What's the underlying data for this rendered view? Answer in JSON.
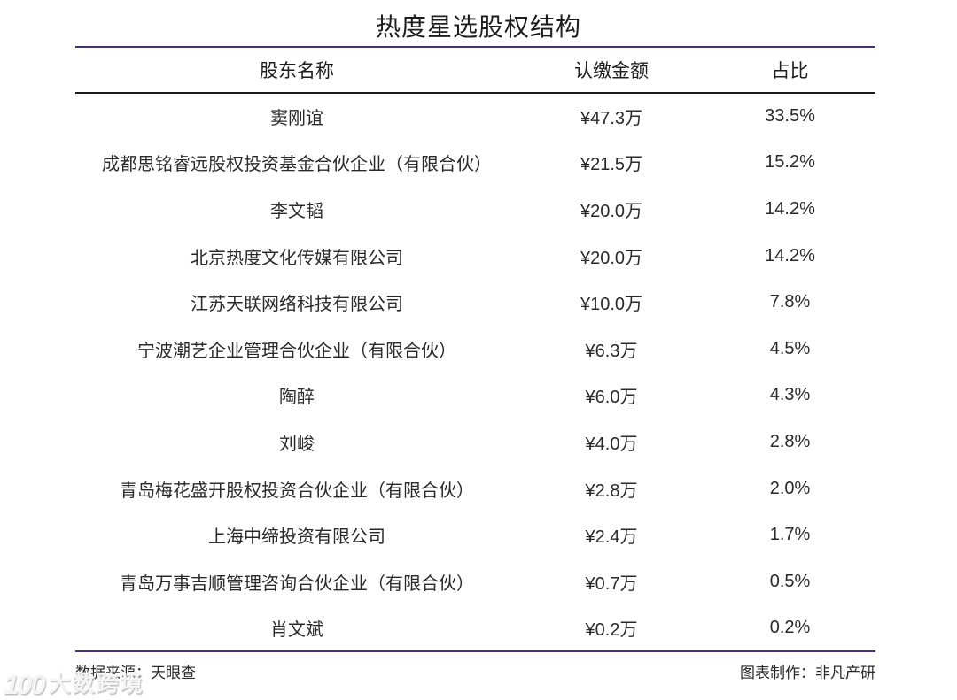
{
  "title": "热度星选股权结构",
  "table": {
    "headers": [
      "股东名称",
      "认缴金额",
      "占比"
    ],
    "rows": [
      {
        "name": "窦刚谊",
        "amount": "¥47.3万",
        "pct": "33.5%"
      },
      {
        "name": "成都思铭睿远股权投资基金合伙企业（有限合伙）",
        "amount": "¥21.5万",
        "pct": "15.2%"
      },
      {
        "name": "李文韬",
        "amount": "¥20.0万",
        "pct": "14.2%"
      },
      {
        "name": "北京热度文化传媒有限公司",
        "amount": "¥20.0万",
        "pct": "14.2%"
      },
      {
        "name": "江苏天联网络科技有限公司",
        "amount": "¥10.0万",
        "pct": "7.8%"
      },
      {
        "name": "宁波潮艺企业管理合伙企业（有限合伙）",
        "amount": "¥6.3万",
        "pct": "4.5%"
      },
      {
        "name": "陶醉",
        "amount": "¥6.0万",
        "pct": "4.3%"
      },
      {
        "name": "刘峻",
        "amount": "¥4.0万",
        "pct": "2.8%"
      },
      {
        "name": "青岛梅花盛开股权投资合伙企业（有限合伙）",
        "amount": "¥2.8万",
        "pct": "2.0%"
      },
      {
        "name": "上海中缔投资有限公司",
        "amount": "¥2.4万",
        "pct": "1.7%"
      },
      {
        "name": "青岛万事吉顺管理咨询合伙企业（有限合伙）",
        "amount": "¥0.7万",
        "pct": "0.5%"
      },
      {
        "name": "肖文斌",
        "amount": "¥0.2万",
        "pct": "0.2%"
      }
    ]
  },
  "footer": {
    "source": "数据来源：天眼查",
    "credit": "图表制作：非凡产研"
  },
  "watermark": {
    "logo": "100",
    "text": "大数跨境"
  },
  "colors": {
    "accent_rule": "#44317a",
    "header_rule": "#1d1d1d",
    "text": "#2a2a2a",
    "background": "#ffffff"
  },
  "chart_data": {
    "type": "table",
    "title": "热度星选股权结构",
    "columns": [
      "股东名称",
      "认缴金额",
      "占比"
    ],
    "categories": [
      "窦刚谊",
      "成都思铭睿远股权投资基金合伙企业（有限合伙）",
      "李文韬",
      "北京热度文化传媒有限公司",
      "江苏天联网络科技有限公司",
      "宁波潮艺企业管理合伙企业（有限合伙）",
      "陶醉",
      "刘峻",
      "青岛梅花盛开股权投资合伙企业（有限合伙）",
      "上海中缔投资有限公司",
      "青岛万事吉顺管理咨询合伙企业（有限合伙）",
      "肖文斌"
    ],
    "series": [
      {
        "name": "认缴金额(万元)",
        "values": [
          47.3,
          21.5,
          20.0,
          20.0,
          10.0,
          6.3,
          6.0,
          4.0,
          2.8,
          2.4,
          0.7,
          0.2
        ]
      },
      {
        "name": "占比(%)",
        "values": [
          33.5,
          15.2,
          14.2,
          14.2,
          7.8,
          4.5,
          4.3,
          2.8,
          2.0,
          1.7,
          0.5,
          0.2
        ]
      }
    ],
    "source": "天眼查",
    "credit": "非凡产研"
  }
}
